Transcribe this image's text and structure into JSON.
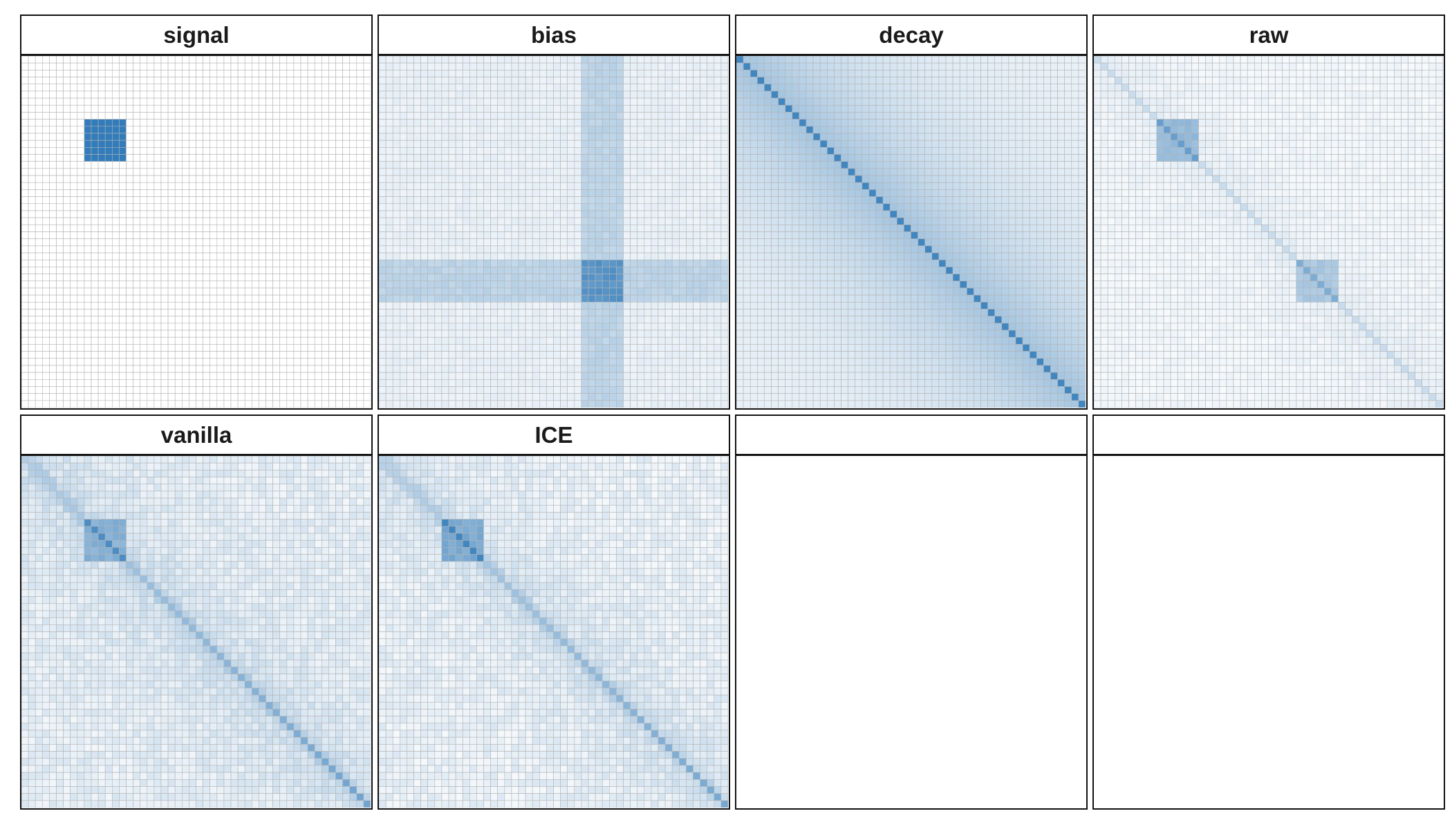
{
  "chart_data": {
    "type": "heatmap",
    "layout": {
      "rows": 2,
      "cols": 4
    },
    "grid_size": 50,
    "value_range": [
      0,
      1
    ],
    "colors": {
      "low": "#ffffff",
      "high": "#2171b5",
      "gridline": "#b3b3b3",
      "strip_border": "#111111"
    },
    "panels": [
      {
        "title": "signal",
        "matrix": "signal",
        "blocks": [
          {
            "rows": [
              9,
              14
            ],
            "cols": [
              9,
              14
            ],
            "value": 0.92
          }
        ],
        "background": 0.0
      },
      {
        "title": "bias",
        "matrix": "bias",
        "cross_band": {
          "rows": [
            29,
            34
          ],
          "cols": [
            29,
            34
          ]
        },
        "band_value": 0.3,
        "intersection_value": 0.75,
        "background": 0.1
      },
      {
        "title": "decay",
        "matrix": "decay",
        "diagonal_value": 0.85,
        "decay_rate": 0.06,
        "background": 0.08
      },
      {
        "title": "raw",
        "matrix": "raw",
        "blocks": [
          {
            "rows": [
              9,
              14
            ],
            "cols": [
              9,
              14
            ],
            "value": 0.48
          },
          {
            "rows": [
              29,
              34
            ],
            "cols": [
              29,
              34
            ],
            "value": 0.38
          }
        ],
        "diagonal_value": 0.25,
        "background": 0.06
      },
      {
        "title": "vanilla",
        "matrix": "vanilla",
        "blocks": [
          {
            "rows": [
              9,
              14
            ],
            "cols": [
              9,
              14
            ],
            "value": 0.55
          }
        ],
        "diagonal_value": 0.35,
        "background": 0.12
      },
      {
        "title": "ICE",
        "matrix": "ice",
        "blocks": [
          {
            "rows": [
              9,
              14
            ],
            "cols": [
              9,
              14
            ],
            "value": 0.6
          }
        ],
        "diagonal_value": 0.32,
        "background": 0.1
      },
      {
        "title": "",
        "matrix": "empty"
      },
      {
        "title": "",
        "matrix": "empty"
      }
    ]
  }
}
